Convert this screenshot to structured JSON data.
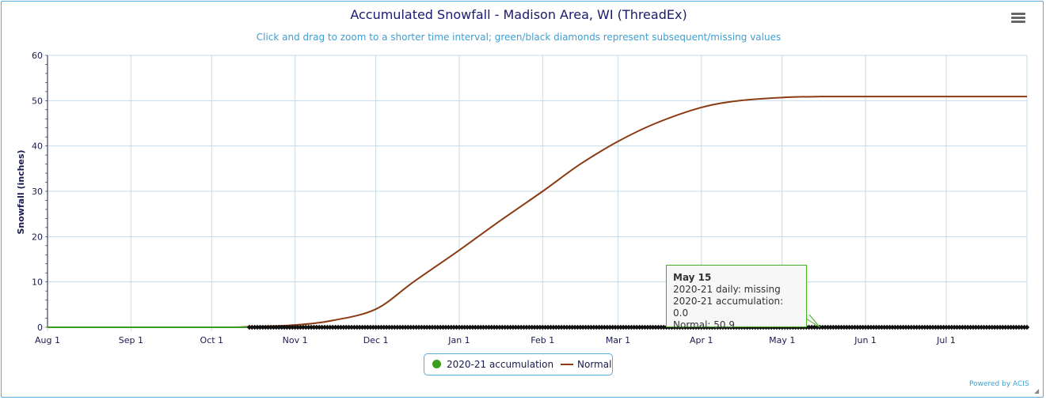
{
  "title": "Accumulated Snowfall - Madison Area, WI (ThreadEx)",
  "subtitle": "Click and drag to zoom to a shorter time interval; green/black diamonds represent subsequent/missing values",
  "menu_icon": "hamburger-menu-icon",
  "credits": "Powered by ACIS",
  "tooltip": {
    "date": "May 15",
    "line1": "2020-21 daily: missing",
    "line2": "2020-21 accumulation: 0.0",
    "line3": "Normal: 50.9"
  },
  "legend": {
    "accumulation": "2020-21 accumulation",
    "normal": "Normal"
  },
  "colors": {
    "accumulation": "#3b9e1e",
    "normal": "#8b3a12",
    "missing_marker": "#111111",
    "grid": "#c7dcea",
    "axis_text": "#1a1a4e"
  },
  "chart_data": {
    "type": "line",
    "title": "Accumulated Snowfall - Madison Area, WI (ThreadEx)",
    "subtitle": "Click and drag to zoom to a shorter time interval; green/black diamonds represent subsequent/missing values",
    "ylabel": "Snowfall (inches)",
    "xlabel": "",
    "ylim": [
      0,
      60
    ],
    "yticks": [
      0,
      10,
      20,
      30,
      40,
      50,
      60
    ],
    "xlim_days": [
      0,
      364
    ],
    "xtick_labels": [
      "Aug 1",
      "Sep 1",
      "Oct 1",
      "Nov 1",
      "Dec 1",
      "Jan 1",
      "Feb 1",
      "Mar 1",
      "Apr 1",
      "May 1",
      "Jun 1",
      "Jul 1"
    ],
    "xtick_days": [
      0,
      31,
      61,
      92,
      122,
      153,
      184,
      212,
      243,
      273,
      304,
      334
    ],
    "grid": true,
    "legend_position": "bottom-center",
    "series": [
      {
        "name": "Normal",
        "x": [
          "Aug 1",
          "Oct 1",
          "Oct 15",
          "Nov 1",
          "Nov 15",
          "Dec 1",
          "Dec 15",
          "Jan 1",
          "Jan 15",
          "Feb 1",
          "Feb 15",
          "Mar 1",
          "Mar 15",
          "Apr 1",
          "Apr 15",
          "May 1",
          "May 15",
          "Jun 1",
          "Jul 1",
          "Jul 31"
        ],
        "y": [
          0.0,
          0.0,
          0.1,
          0.5,
          1.5,
          4.0,
          10.0,
          17.0,
          23.0,
          30.0,
          36.0,
          41.0,
          45.0,
          48.5,
          50.0,
          50.7,
          50.9,
          50.9,
          50.9,
          50.9
        ]
      },
      {
        "name": "2020-21 accumulation",
        "x": [
          "Aug 1",
          "May 15",
          "Jul 31"
        ],
        "y": [
          0.0,
          0.0,
          0.0
        ],
        "missing_from": "Oct 15",
        "missing_to": "Jul 31",
        "missing_value": 0.0
      }
    ]
  }
}
